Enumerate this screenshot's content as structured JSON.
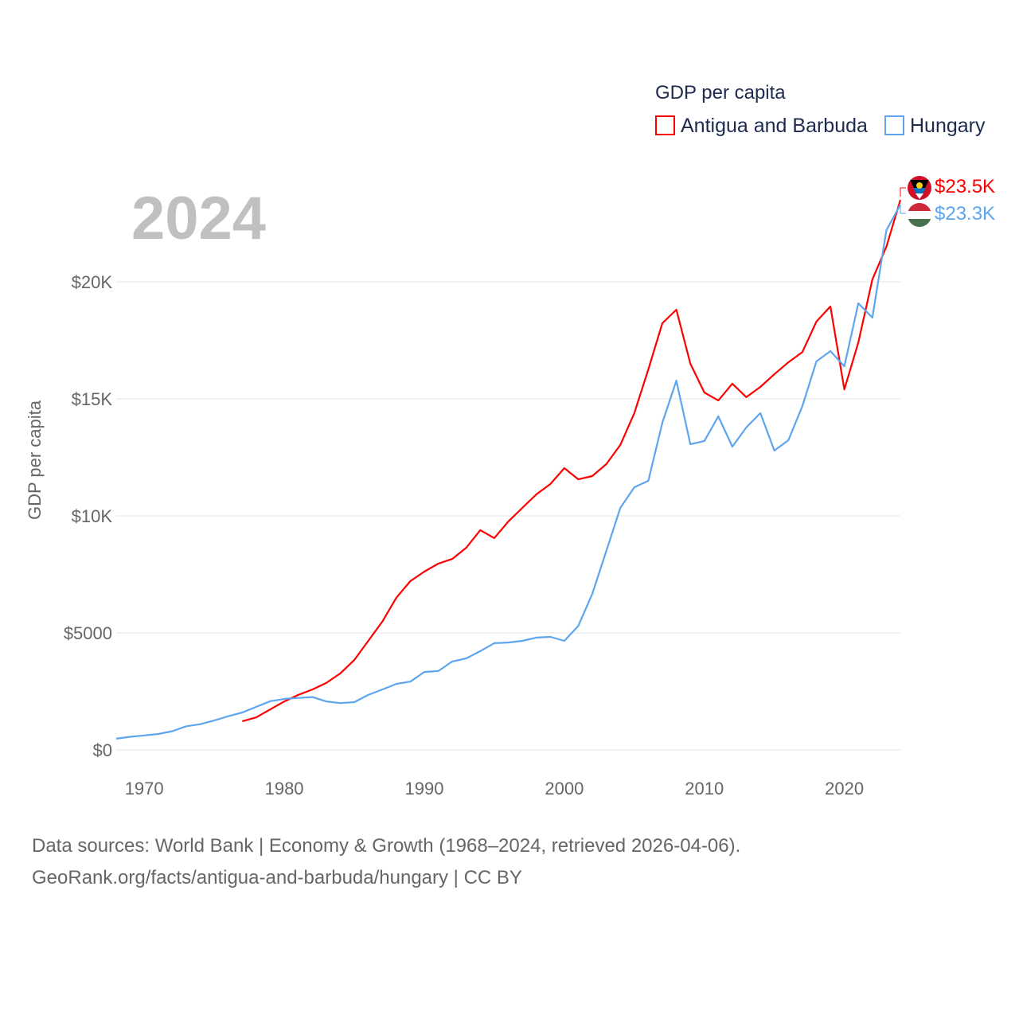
{
  "chart_data": {
    "type": "line",
    "title": "GDP per capita",
    "ylabel": "GDP per capita",
    "xlabel": "",
    "year_label": "2024",
    "xlim": [
      1968,
      2024
    ],
    "ylim": [
      0,
      20000
    ],
    "x_ticks": [
      1970,
      1980,
      1990,
      2000,
      2010,
      2020
    ],
    "x_tick_labels": [
      "1970",
      "1980",
      "1990",
      "2000",
      "2010",
      "2020"
    ],
    "y_ticks": [
      0,
      5000,
      10000,
      15000,
      20000
    ],
    "y_tick_labels": [
      "$0",
      "$5000",
      "$10K",
      "$15K",
      "$20K"
    ],
    "grid": true,
    "legend_placement": "top-right",
    "series": [
      {
        "name": "Antigua and Barbuda",
        "color": "#ff0000",
        "end_label": "$23.5K",
        "x_start": 1977,
        "values": [
          1220,
          1390,
          1730,
          2070,
          2350,
          2580,
          2860,
          3270,
          3840,
          4660,
          5480,
          6500,
          7210,
          7620,
          7960,
          8160,
          8640,
          9390,
          9050,
          9760,
          10340,
          10920,
          11360,
          12040,
          11560,
          11700,
          12210,
          13030,
          14390,
          16260,
          18230,
          18810,
          16500,
          15270,
          14930,
          15650,
          15070,
          15510,
          16050,
          16560,
          17000,
          18300,
          18950,
          15400,
          17410,
          20100,
          21500,
          23500
        ]
      },
      {
        "name": "Hungary",
        "color": "#5da5ee",
        "end_label": "$23.3K",
        "x_start": 1968,
        "values": [
          480,
          560,
          620,
          680,
          800,
          1010,
          1100,
          1260,
          1440,
          1600,
          1840,
          2080,
          2180,
          2220,
          2260,
          2070,
          2000,
          2040,
          2350,
          2580,
          2820,
          2920,
          3330,
          3370,
          3780,
          3910,
          4220,
          4560,
          4590,
          4660,
          4800,
          4830,
          4660,
          5300,
          6670,
          8500,
          10340,
          11220,
          11500,
          13980,
          15780,
          13060,
          13200,
          14250,
          12960,
          13780,
          14390,
          12790,
          13230,
          14690,
          16600,
          17040,
          16390,
          19080,
          18470,
          22200,
          23300
        ]
      }
    ]
  },
  "source": {
    "line1": "Data sources: World Bank | Economy & Growth (1968–2024, retrieved 2026-04-06).",
    "line2": "GeoRank.org/facts/antigua-and-barbuda/hungary | CC BY"
  }
}
